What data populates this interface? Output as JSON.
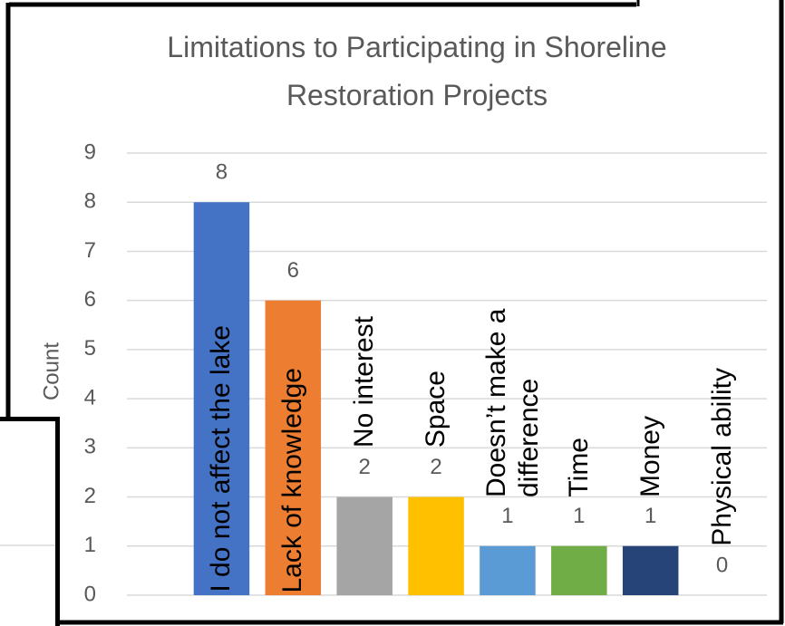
{
  "chart_data": {
    "type": "bar",
    "title": "Limitations to Participating in Shoreline Restoration Projects",
    "y_label": "Count",
    "categories": [
      "I do not affect the lake",
      "Lack of knowledge",
      "No interest",
      "Space",
      "Doesn’t make a difference",
      "Time",
      "Money",
      "Physical ability"
    ],
    "values": [
      8,
      6,
      2,
      2,
      1,
      1,
      1,
      0
    ],
    "colors": [
      "#4472c4",
      "#ed7d31",
      "#a5a5a5",
      "#ffc000",
      "#5b9bd5",
      "#70ad47",
      "#264478",
      "#9e480e"
    ],
    "ylim": [
      0,
      9
    ],
    "yticks": [
      0,
      1,
      2,
      3,
      4,
      5,
      6,
      7,
      8,
      9
    ],
    "grid": true
  }
}
